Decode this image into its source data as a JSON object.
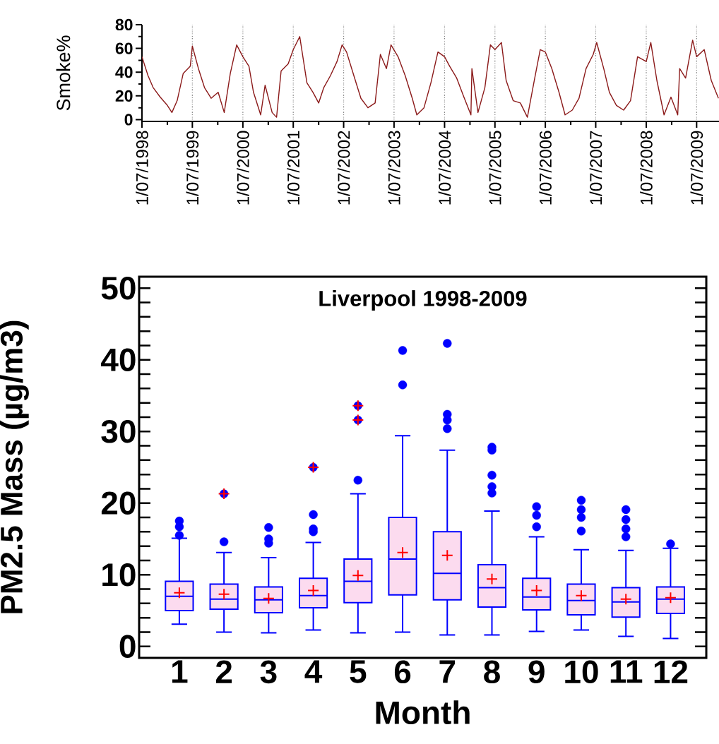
{
  "chart_data": [
    {
      "type": "line",
      "ylabel": "Smoke%",
      "color": "#8b1a1a",
      "grid": "x",
      "x": [
        "1998-07-01",
        "1998-08-14",
        "1998-09-20",
        "1998-11-10",
        "1999-01-01",
        "1999-02-03",
        "1999-03-13",
        "1999-04-26",
        "1999-06-16",
        "1999-07-01",
        "1999-08-14",
        "1999-09-27",
        "1999-11-14",
        "2000-01-04",
        "2000-02-17",
        "2000-04-01",
        "2000-05-17",
        "2000-07-01",
        "2000-08-14",
        "2000-09-16",
        "2000-11-07",
        "2000-12-09",
        "2001-01-29",
        "2001-03-02",
        "2001-04-04",
        "2001-05-25",
        "2001-07-01",
        "2001-08-17",
        "2001-10-08",
        "2001-11-21",
        "2002-01-01",
        "2002-02-07",
        "2002-03-27",
        "2002-05-14",
        "2002-06-20",
        "2002-07-22",
        "2002-09-13",
        "2002-11-03",
        "2002-12-24",
        "2003-02-14",
        "2003-03-24",
        "2003-05-07",
        "2003-06-09",
        "2003-07-30",
        "2003-09-20",
        "2003-11-10",
        "2003-12-13",
        "2004-02-03",
        "2004-03-24",
        "2004-05-14",
        "2004-07-01",
        "2004-08-07",
        "2004-09-27",
        "2004-11-18",
        "2005-01-08",
        "2005-01-15",
        "2005-02-28",
        "2005-04-19",
        "2005-05-29",
        "2005-07-01",
        "2005-08-17",
        "2005-09-20",
        "2005-11-10",
        "2006-01-01",
        "2006-02-21",
        "2006-04-12",
        "2006-05-25",
        "2006-07-01",
        "2006-08-17",
        "2006-10-08",
        "2006-11-21",
        "2007-01-12",
        "2007-03-02",
        "2007-04-22",
        "2007-06-13",
        "2007-07-08",
        "2007-08-28",
        "2007-10-08",
        "2007-11-28",
        "2008-01-19",
        "2008-03-09",
        "2008-04-29",
        "2008-07-01",
        "2008-08-03",
        "2008-09-16",
        "2008-11-07",
        "2008-12-27",
        "2009-02-14",
        "2009-02-28",
        "2009-04-12",
        "2009-06-02",
        "2009-07-01",
        "2009-08-25",
        "2009-10-15",
        "2009-12-06"
      ],
      "values": [
        53,
        37,
        27,
        19,
        12,
        6,
        16,
        39,
        45,
        62,
        43,
        27,
        18,
        23,
        6,
        39,
        63,
        53,
        45,
        23,
        4,
        29,
        6,
        2,
        41,
        47,
        59,
        70,
        31,
        23,
        14,
        27,
        37,
        49,
        63,
        57,
        37,
        18,
        10,
        14,
        55,
        43,
        63,
        53,
        37,
        18,
        4,
        10,
        31,
        57,
        53,
        45,
        35,
        19,
        4,
        43,
        6,
        27,
        63,
        59,
        65,
        33,
        16,
        14,
        2,
        33,
        59,
        57,
        43,
        23,
        4,
        8,
        18,
        43,
        55,
        65,
        43,
        23,
        12,
        8,
        16,
        53,
        49,
        65,
        33,
        4,
        19,
        4,
        43,
        35,
        67,
        53,
        59,
        33,
        18
      ],
      "xlim": [
        "1998-07-01",
        "2009-12-10"
      ],
      "ylim": [
        -1.5,
        80
      ],
      "yticks": [
        0,
        {
          "value": 10,
          "label": null
        },
        20,
        {
          "value": 30,
          "label": null
        },
        40,
        {
          "value": 50,
          "label": null
        },
        60,
        {
          "value": 70,
          "label": null
        },
        80
      ],
      "xticks": [
        {
          "value": "1998-07-01",
          "label": "1/07/1998"
        },
        {
          "value": "1999-01-01",
          "label": null
        },
        {
          "value": "1999-07-01",
          "label": "1/07/1999"
        },
        {
          "value": "2000-01-01",
          "label": null
        },
        {
          "value": "2000-07-01",
          "label": "1/07/2000"
        },
        {
          "value": "2001-01-01",
          "label": null
        },
        {
          "value": "2001-07-01",
          "label": "1/07/2001"
        },
        {
          "value": "2002-01-01",
          "label": null
        },
        {
          "value": "2002-07-01",
          "label": "1/07/2002"
        },
        {
          "value": "2003-01-01",
          "label": null
        },
        {
          "value": "2003-07-01",
          "label": "1/07/2003"
        },
        {
          "value": "2004-01-01",
          "label": null
        },
        {
          "value": "2004-07-01",
          "label": "1/07/2004"
        },
        {
          "value": "2005-01-01",
          "label": null
        },
        {
          "value": "2005-07-01",
          "label": "1/07/2005"
        },
        {
          "value": "2006-01-01",
          "label": null
        },
        {
          "value": "2006-07-01",
          "label": "1/07/2006"
        },
        {
          "value": "2007-01-01",
          "label": null
        },
        {
          "value": "2007-07-01",
          "label": "1/07/2007"
        },
        {
          "value": "2008-01-01",
          "label": null
        },
        {
          "value": "2008-07-01",
          "label": "1/07/2008"
        },
        {
          "value": "2009-01-01",
          "label": null
        },
        {
          "value": "2009-07-01",
          "label": "1/07/2009"
        }
      ]
    },
    {
      "type": "box",
      "title": "Liverpool 1998-2009",
      "xlabel": "Month",
      "ylabel": "PM2.5 Mass (µg/m3)",
      "color": "#0000ff",
      "categories": [
        "1",
        "2",
        "3",
        "4",
        "5",
        "6",
        "7",
        "8",
        "9",
        "10",
        "11",
        "12"
      ],
      "boxes": [
        {
          "low": 3.1,
          "q1": 5.0,
          "median": 7.0,
          "q3": 9.1,
          "high": 15.1,
          "mean": 7.5,
          "outliers": [
            15.5,
            16.7,
            17.5
          ]
        },
        {
          "low": 2.0,
          "q1": 5.2,
          "median": 6.6,
          "q3": 8.7,
          "high": 13.1,
          "mean": 7.3,
          "outliers": [
            14.6
          ]
        },
        {
          "low": 1.9,
          "q1": 4.7,
          "median": 6.5,
          "q3": 8.3,
          "high": 12.4,
          "mean": 6.7,
          "outliers": [
            14.4,
            15.0,
            16.6
          ]
        },
        {
          "low": 2.3,
          "q1": 5.4,
          "median": 7.1,
          "q3": 9.5,
          "high": 14.5,
          "mean": 7.8,
          "outliers": [
            16.0,
            16.4,
            18.4
          ]
        },
        {
          "low": 1.9,
          "q1": 6.1,
          "median": 9.1,
          "q3": 12.2,
          "high": 21.3,
          "mean": 9.9,
          "outliers": [
            23.2
          ]
        },
        {
          "low": 2.0,
          "q1": 7.2,
          "median": 12.2,
          "q3": 18.0,
          "high": 29.4,
          "mean": 13.1,
          "outliers": [
            36.5,
            41.3
          ]
        },
        {
          "low": 1.6,
          "q1": 6.5,
          "median": 10.2,
          "q3": 16.0,
          "high": 27.4,
          "mean": 12.7,
          "outliers": [
            30.4,
            31.6,
            32.4,
            42.3
          ]
        },
        {
          "low": 1.6,
          "q1": 5.5,
          "median": 8.2,
          "q3": 11.4,
          "high": 18.9,
          "mean": 9.4,
          "outliers": [
            21.4,
            22.3,
            23.9,
            27.4,
            27.8
          ]
        },
        {
          "low": 2.1,
          "q1": 5.1,
          "median": 6.9,
          "q3": 9.5,
          "high": 15.3,
          "mean": 7.8,
          "outliers": [
            16.7,
            18.3,
            19.5
          ]
        },
        {
          "low": 2.3,
          "q1": 4.4,
          "median": 6.4,
          "q3": 8.7,
          "high": 13.5,
          "mean": 7.1,
          "outliers": [
            16.1,
            18.0,
            19.1,
            20.4
          ]
        },
        {
          "low": 1.4,
          "q1": 4.1,
          "median": 6.2,
          "q3": 8.2,
          "high": 13.4,
          "mean": 6.6,
          "outliers": [
            15.3,
            16.4,
            17.7,
            19.1
          ]
        },
        {
          "low": 1.1,
          "q1": 4.6,
          "median": 6.6,
          "q3": 8.3,
          "high": 13.7,
          "mean": 6.8,
          "outliers": [
            14.3
          ]
        }
      ],
      "series": [
        {
          "type": "scatter",
          "marker": "circle",
          "color": "#0000ff",
          "x": [
            "2",
            "4",
            "5",
            "5"
          ],
          "values": [
            21.3,
            25.0,
            31.6,
            33.6
          ]
        },
        {
          "type": "scatter",
          "marker": "cross",
          "color": "#ff0000",
          "x": [
            "2",
            "4",
            "5",
            "5"
          ],
          "values": [
            21.3,
            25.0,
            31.6,
            33.6
          ]
        }
      ],
      "ylim": [
        -1.6,
        51.6
      ],
      "yticks": [
        0,
        {
          "value": 2,
          "label": null
        },
        {
          "value": 4,
          "label": null
        },
        {
          "value": 6,
          "label": null
        },
        {
          "value": 8,
          "label": null
        },
        10,
        {
          "value": 12,
          "label": null
        },
        {
          "value": 14,
          "label": null
        },
        {
          "value": 16,
          "label": null
        },
        {
          "value": 18,
          "label": null
        },
        20,
        {
          "value": 22,
          "label": null
        },
        {
          "value": 24,
          "label": null
        },
        {
          "value": 26,
          "label": null
        },
        {
          "value": 28,
          "label": null
        },
        30,
        {
          "value": 32,
          "label": null
        },
        {
          "value": 34,
          "label": null
        },
        {
          "value": 36,
          "label": null
        },
        {
          "value": 38,
          "label": null
        },
        40,
        {
          "value": 42,
          "label": null
        },
        {
          "value": 44,
          "label": null
        },
        {
          "value": 46,
          "label": null
        },
        {
          "value": 48,
          "label": null
        },
        50
      ]
    }
  ]
}
